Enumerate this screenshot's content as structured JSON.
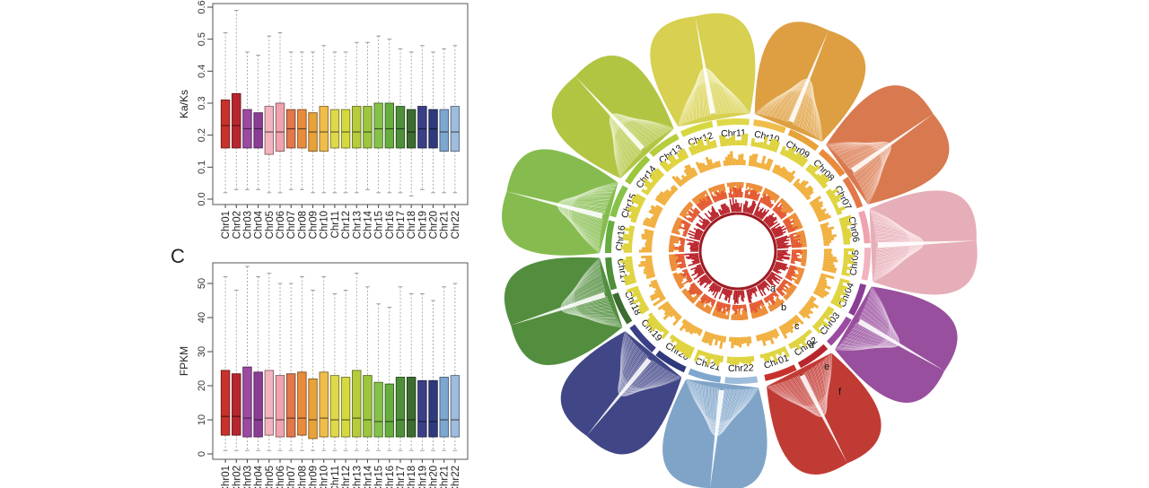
{
  "chromosomes": [
    "Chr01",
    "Chr02",
    "Chr03",
    "Chr04",
    "Chr05",
    "Chr06",
    "Chr07",
    "Chr08",
    "Chr09",
    "Chr10",
    "Chr11",
    "Chr12",
    "Chr13",
    "Chr14",
    "Chr15",
    "Chr16",
    "Chr17",
    "Chr18",
    "Chr19",
    "Chr20",
    "Chr21",
    "Chr22"
  ],
  "colors": [
    "#c8322c",
    "#b7262e",
    "#9a4aa0",
    "#8a3d95",
    "#f1b3bd",
    "#efa3ae",
    "#e2784a",
    "#ea8a3d",
    "#e7a23a",
    "#f0bc4a",
    "#e0d84b",
    "#d5d93f",
    "#b7cc3c",
    "#9cc63c",
    "#86c24a",
    "#67ad3f",
    "#4e8f38",
    "#3d6c30",
    "#3a3f87",
    "#2f3a7d",
    "#7ea7cf",
    "#9ebcdc"
  ],
  "panel_c_label": "C",
  "chart_data": [
    {
      "type": "boxplot",
      "ylabel": "Ka/Ks",
      "ylim": [
        0,
        0.6
      ],
      "yticks": [
        "0.0",
        "0.1",
        "0.2",
        "0.3",
        "0.4",
        "0.5",
        "0.6"
      ],
      "categories": [
        "Chr01",
        "Chr02",
        "Chr03",
        "Chr04",
        "Chr05",
        "Chr06",
        "Chr07",
        "Chr08",
        "Chr09",
        "Chr10",
        "Chr11",
        "Chr12",
        "Chr13",
        "Chr14",
        "Chr15",
        "Chr16",
        "Chr17",
        "Chr18",
        "Chr19",
        "Chr20",
        "Chr21",
        "Chr22"
      ],
      "stats": [
        {
          "low": 0.02,
          "q1": 0.16,
          "median": 0.23,
          "q3": 0.31,
          "high": 0.52
        },
        {
          "low": 0.03,
          "q1": 0.16,
          "median": 0.23,
          "q3": 0.33,
          "high": 0.59
        },
        {
          "low": 0.03,
          "q1": 0.16,
          "median": 0.22,
          "q3": 0.28,
          "high": 0.46
        },
        {
          "low": 0.03,
          "q1": 0.16,
          "median": 0.22,
          "q3": 0.27,
          "high": 0.45
        },
        {
          "low": 0.02,
          "q1": 0.14,
          "median": 0.21,
          "q3": 0.29,
          "high": 0.51
        },
        {
          "low": 0.02,
          "q1": 0.15,
          "median": 0.21,
          "q3": 0.3,
          "high": 0.52
        },
        {
          "low": 0.03,
          "q1": 0.16,
          "median": 0.22,
          "q3": 0.28,
          "high": 0.46
        },
        {
          "low": 0.03,
          "q1": 0.16,
          "median": 0.22,
          "q3": 0.28,
          "high": 0.46
        },
        {
          "low": 0.02,
          "q1": 0.15,
          "median": 0.21,
          "q3": 0.27,
          "high": 0.46
        },
        {
          "low": 0.02,
          "q1": 0.15,
          "median": 0.21,
          "q3": 0.29,
          "high": 0.48
        },
        {
          "low": 0.02,
          "q1": 0.16,
          "median": 0.21,
          "q3": 0.28,
          "high": 0.46
        },
        {
          "low": 0.02,
          "q1": 0.16,
          "median": 0.21,
          "q3": 0.28,
          "high": 0.46
        },
        {
          "low": 0.02,
          "q1": 0.16,
          "median": 0.21,
          "q3": 0.29,
          "high": 0.49
        },
        {
          "low": 0.03,
          "q1": 0.16,
          "median": 0.21,
          "q3": 0.29,
          "high": 0.49
        },
        {
          "low": 0.02,
          "q1": 0.16,
          "median": 0.22,
          "q3": 0.3,
          "high": 0.51
        },
        {
          "low": 0.02,
          "q1": 0.16,
          "median": 0.22,
          "q3": 0.3,
          "high": 0.5
        },
        {
          "low": 0.02,
          "q1": 0.16,
          "median": 0.22,
          "q3": 0.29,
          "high": 0.47
        },
        {
          "low": 0.01,
          "q1": 0.16,
          "median": 0.21,
          "q3": 0.28,
          "high": 0.46
        },
        {
          "low": 0.03,
          "q1": 0.16,
          "median": 0.22,
          "q3": 0.29,
          "high": 0.48
        },
        {
          "low": 0.02,
          "q1": 0.16,
          "median": 0.22,
          "q3": 0.28,
          "high": 0.46
        },
        {
          "low": 0.02,
          "q1": 0.15,
          "median": 0.21,
          "q3": 0.28,
          "high": 0.47
        },
        {
          "low": 0.02,
          "q1": 0.15,
          "median": 0.21,
          "q3": 0.29,
          "high": 0.48
        }
      ]
    },
    {
      "type": "boxplot",
      "ylabel": "FPKM",
      "ylim": [
        0,
        55
      ],
      "yticks": [
        "0",
        "10",
        "20",
        "30",
        "40",
        "50"
      ],
      "categories": [
        "Chr01",
        "Chr02",
        "Chr03",
        "Chr04",
        "Chr05",
        "Chr06",
        "Chr07",
        "Chr08",
        "Chr09",
        "Chr10",
        "Chr11",
        "Chr12",
        "Chr13",
        "Chr14",
        "Chr15",
        "Chr16",
        "Chr17",
        "Chr18",
        "Chr19",
        "Chr20",
        "Chr21",
        "Chr22"
      ],
      "stats": [
        {
          "low": 1,
          "q1": 5.5,
          "median": 11,
          "q3": 24.5,
          "high": 52
        },
        {
          "low": 1,
          "q1": 5.5,
          "median": 11,
          "q3": 23.5,
          "high": 48
        },
        {
          "low": 1,
          "q1": 5,
          "median": 10.5,
          "q3": 25.5,
          "high": 55
        },
        {
          "low": 1,
          "q1": 5,
          "median": 10,
          "q3": 24,
          "high": 52
        },
        {
          "low": 1,
          "q1": 5.5,
          "median": 10.5,
          "q3": 24.5,
          "high": 53
        },
        {
          "low": 1,
          "q1": 5,
          "median": 10,
          "q3": 23,
          "high": 50
        },
        {
          "low": 1,
          "q1": 5,
          "median": 10.5,
          "q3": 23.5,
          "high": 50
        },
        {
          "low": 1,
          "q1": 5.5,
          "median": 10.5,
          "q3": 24,
          "high": 52
        },
        {
          "low": 1,
          "q1": 4.5,
          "median": 10,
          "q3": 22,
          "high": 48
        },
        {
          "low": 1,
          "q1": 5,
          "median": 10.5,
          "q3": 24,
          "high": 52
        },
        {
          "low": 1,
          "q1": 5,
          "median": 10,
          "q3": 23,
          "high": 47
        },
        {
          "low": 1,
          "q1": 5,
          "median": 10,
          "q3": 22.5,
          "high": 48
        },
        {
          "low": 1,
          "q1": 5,
          "median": 10.5,
          "q3": 24.5,
          "high": 53
        },
        {
          "low": 1,
          "q1": 5,
          "median": 10,
          "q3": 23,
          "high": 49
        },
        {
          "low": 1,
          "q1": 5,
          "median": 9.5,
          "q3": 21,
          "high": 44
        },
        {
          "low": 1,
          "q1": 5,
          "median": 9.5,
          "q3": 20.5,
          "high": 43
        },
        {
          "low": 1,
          "q1": 5,
          "median": 10,
          "q3": 22.5,
          "high": 49
        },
        {
          "low": 1,
          "q1": 5,
          "median": 10,
          "q3": 22.5,
          "high": 47
        },
        {
          "low": 1,
          "q1": 5,
          "median": 9.5,
          "q3": 21.5,
          "high": 47
        },
        {
          "low": 1,
          "q1": 5,
          "median": 9.5,
          "q3": 21.5,
          "high": 45
        },
        {
          "low": 1,
          "q1": 5,
          "median": 10,
          "q3": 22.5,
          "high": 49
        },
        {
          "low": 1,
          "q1": 5,
          "median": 10,
          "q3": 23,
          "high": 50
        }
      ]
    },
    {
      "type": "circos",
      "ring_labels": [
        "a",
        "b",
        "c",
        "d",
        "e",
        "f"
      ],
      "track_colors": [
        "#b81f27",
        "#e3572f",
        "#ec8b35",
        "#f1b03e",
        "#dfd33d"
      ],
      "link_bundles": [
        {
          "pair": [
            "Chr01",
            "Chr02"
          ]
        },
        {
          "pair": [
            "Chr03",
            "Chr04"
          ]
        },
        {
          "pair": [
            "Chr05",
            "Chr06"
          ]
        },
        {
          "pair": [
            "Chr07",
            "Chr08"
          ]
        },
        {
          "pair": [
            "Chr09",
            "Chr10"
          ]
        },
        {
          "pair": [
            "Chr11",
            "Chr12"
          ]
        },
        {
          "pair": [
            "Chr13",
            "Chr14"
          ]
        },
        {
          "pair": [
            "Chr15",
            "Chr16"
          ]
        },
        {
          "pair": [
            "Chr17",
            "Chr18"
          ]
        },
        {
          "pair": [
            "Chr19",
            "Chr20"
          ]
        },
        {
          "pair": [
            "Chr21",
            "Chr22"
          ]
        }
      ]
    }
  ]
}
